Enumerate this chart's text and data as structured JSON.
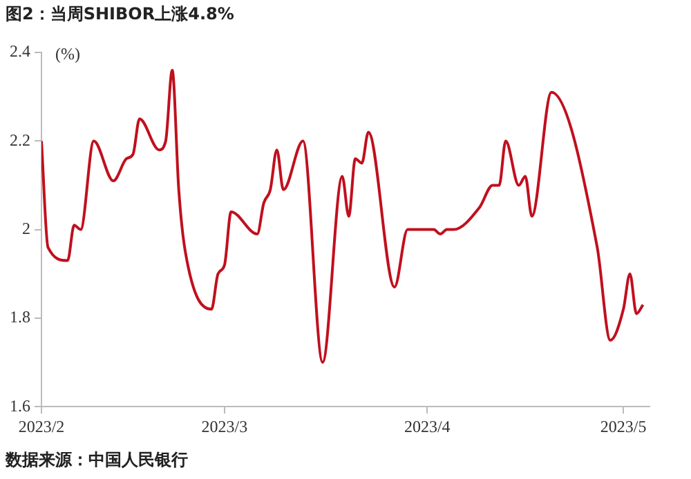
{
  "chart_data": {
    "type": "line",
    "title": "图2：当周SHIBOR上涨4.8%",
    "ylabel": "(%)",
    "annotations": [
      "数据来源：中国人民银行"
    ],
    "x": [
      "2023-02-01",
      "2023-02-02",
      "2023-02-05",
      "2023-02-06",
      "2023-02-07",
      "2023-02-09",
      "2023-02-12",
      "2023-02-14",
      "2023-02-15",
      "2023-02-16",
      "2023-02-19",
      "2023-02-20",
      "2023-02-21",
      "2023-02-22",
      "2023-02-23",
      "2023-02-27",
      "2023-02-28",
      "2023-03-01",
      "2023-03-02",
      "2023-03-06",
      "2023-03-07",
      "2023-03-08",
      "2023-03-09",
      "2023-03-10",
      "2023-03-13",
      "2023-03-16",
      "2023-03-19",
      "2023-03-20",
      "2023-03-21",
      "2023-03-22",
      "2023-03-23",
      "2023-03-27",
      "2023-03-29",
      "2023-04-02",
      "2023-04-03",
      "2023-04-04",
      "2023-04-05",
      "2023-04-09",
      "2023-04-11",
      "2023-04-12",
      "2023-04-13",
      "2023-04-15",
      "2023-04-16",
      "2023-04-17",
      "2023-04-20",
      "2023-04-27",
      "2023-04-29",
      "2023-05-01",
      "2023-05-02",
      "2023-05-03",
      "2023-05-04"
    ],
    "series": [
      {
        "color": "#c0101e",
        "values": [
          2.2,
          1.96,
          1.93,
          2.01,
          2.0,
          2.2,
          2.11,
          2.16,
          2.17,
          2.25,
          2.18,
          2.2,
          2.36,
          2.09,
          1.95,
          1.82,
          1.9,
          1.92,
          2.04,
          1.99,
          2.06,
          2.09,
          2.18,
          2.09,
          2.2,
          1.7,
          2.12,
          2.03,
          2.16,
          2.15,
          2.22,
          1.87,
          2.0,
          2.0,
          1.99,
          2.0,
          2.0,
          2.05,
          2.1,
          2.1,
          2.2,
          2.1,
          2.12,
          2.03,
          2.31,
          1.96,
          1.75,
          1.82,
          1.9,
          1.81,
          1.83
        ]
      }
    ],
    "xlim": [
      "2023-02-01",
      "2023-05-05"
    ],
    "xticks": [
      {
        "value": "2023-02-01",
        "label": "2023/2"
      },
      {
        "value": "2023-03-01",
        "label": "2023/3"
      },
      {
        "value": "2023-04-01",
        "label": "2023/4"
      },
      {
        "value": "2023-05-01",
        "label": "2023/5"
      }
    ],
    "ylim": [
      1.6,
      2.4
    ],
    "yticks": [
      1.6,
      1.8,
      2,
      2.2,
      2.4
    ],
    "grid": false,
    "legend": false,
    "marker": "none",
    "line_style": "solid"
  }
}
